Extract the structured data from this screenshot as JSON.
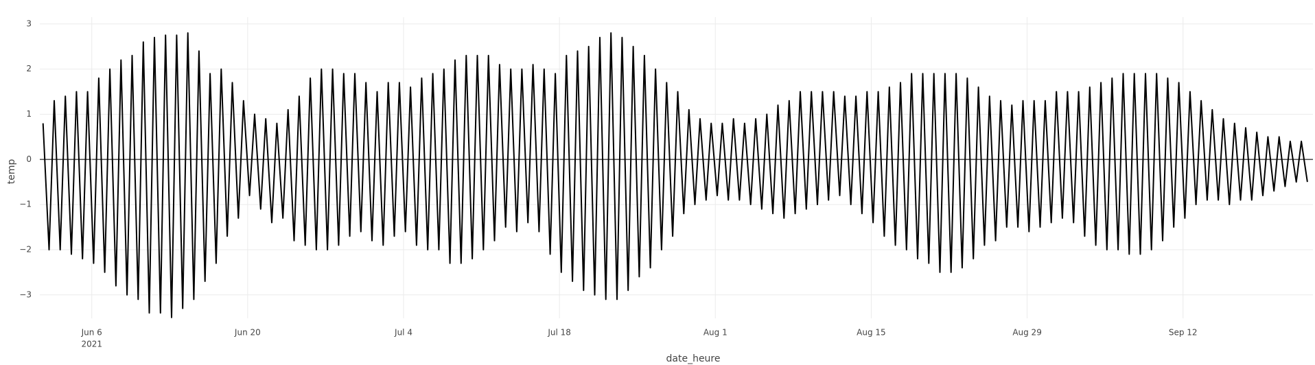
{
  "chart_data": {
    "type": "line",
    "x_label": "date_heure",
    "y_label": "temp",
    "color": "#000000",
    "grid": true,
    "zeroline": true,
    "xlim": [
      "2021-06-01 08:00",
      "2021-09-23 16:00"
    ],
    "ylim": [
      -3.52,
      3.15
    ],
    "yticks": [
      {
        "value": -3,
        "label": "−3"
      },
      {
        "value": -2,
        "label": "−2"
      },
      {
        "value": -1,
        "label": "−1"
      },
      0,
      1,
      2,
      3
    ],
    "xticks": [
      {
        "value": "2021-06-06 00:00",
        "label": "Jun 6",
        "sublabel": "2021"
      },
      {
        "value": "2021-06-20 00:00",
        "label": "Jun 20"
      },
      {
        "value": "2021-07-04 00:00",
        "label": "Jul 4"
      },
      {
        "value": "2021-07-18 00:00",
        "label": "Jul 18"
      },
      {
        "value": "2021-08-01 00:00",
        "label": "Aug 1"
      },
      {
        "value": "2021-08-15 00:00",
        "label": "Aug 15"
      },
      {
        "value": "2021-08-29 00:00",
        "label": "Aug 29"
      },
      {
        "value": "2021-09-12 00:00",
        "label": "Sep 12"
      }
    ],
    "x": [
      "2021-06-01 15:00",
      "2021-06-02 04:00",
      "2021-06-02 15:00",
      "2021-06-03 04:00",
      "2021-06-03 15:00",
      "2021-06-04 04:00",
      "2021-06-04 15:00",
      "2021-06-05 04:00",
      "2021-06-05 15:00",
      "2021-06-06 04:00",
      "2021-06-06 15:00",
      "2021-06-07 04:00",
      "2021-06-07 15:00",
      "2021-06-08 04:00",
      "2021-06-08 15:00",
      "2021-06-09 04:00",
      "2021-06-09 15:00",
      "2021-06-10 04:00",
      "2021-06-10 15:00",
      "2021-06-11 04:00",
      "2021-06-11 15:00",
      "2021-06-12 04:00",
      "2021-06-12 15:00",
      "2021-06-13 04:00",
      "2021-06-13 15:00",
      "2021-06-14 04:00",
      "2021-06-14 15:00",
      "2021-06-15 04:00",
      "2021-06-15 15:00",
      "2021-06-16 04:00",
      "2021-06-16 15:00",
      "2021-06-17 04:00",
      "2021-06-17 15:00",
      "2021-06-18 04:00",
      "2021-06-18 15:00",
      "2021-06-19 04:00",
      "2021-06-19 15:00",
      "2021-06-20 04:00",
      "2021-06-20 15:00",
      "2021-06-21 04:00",
      "2021-06-21 15:00",
      "2021-06-22 04:00",
      "2021-06-22 15:00",
      "2021-06-23 04:00",
      "2021-06-23 15:00",
      "2021-06-24 04:00",
      "2021-06-24 15:00",
      "2021-06-25 04:00",
      "2021-06-25 15:00",
      "2021-06-26 04:00",
      "2021-06-26 15:00",
      "2021-06-27 04:00",
      "2021-06-27 15:00",
      "2021-06-28 04:00",
      "2021-06-28 15:00",
      "2021-06-29 04:00",
      "2021-06-29 15:00",
      "2021-06-30 04:00",
      "2021-06-30 15:00",
      "2021-07-01 04:00",
      "2021-07-01 15:00",
      "2021-07-02 04:00",
      "2021-07-02 15:00",
      "2021-07-03 04:00",
      "2021-07-03 15:00",
      "2021-07-04 04:00",
      "2021-07-04 15:00",
      "2021-07-05 04:00",
      "2021-07-05 15:00",
      "2021-07-06 04:00",
      "2021-07-06 15:00",
      "2021-07-07 04:00",
      "2021-07-07 15:00",
      "2021-07-08 04:00",
      "2021-07-08 15:00",
      "2021-07-09 04:00",
      "2021-07-09 15:00",
      "2021-07-10 04:00",
      "2021-07-10 15:00",
      "2021-07-11 04:00",
      "2021-07-11 15:00",
      "2021-07-12 04:00",
      "2021-07-12 15:00",
      "2021-07-13 04:00",
      "2021-07-13 15:00",
      "2021-07-14 04:00",
      "2021-07-14 15:00",
      "2021-07-15 04:00",
      "2021-07-15 15:00",
      "2021-07-16 04:00",
      "2021-07-16 15:00",
      "2021-07-17 04:00",
      "2021-07-17 15:00",
      "2021-07-18 04:00",
      "2021-07-18 15:00",
      "2021-07-19 04:00",
      "2021-07-19 15:00",
      "2021-07-20 04:00",
      "2021-07-20 15:00",
      "2021-07-21 04:00",
      "2021-07-21 15:00",
      "2021-07-22 04:00",
      "2021-07-22 15:00",
      "2021-07-23 04:00",
      "2021-07-23 15:00",
      "2021-07-24 04:00",
      "2021-07-24 15:00",
      "2021-07-25 04:00",
      "2021-07-25 15:00",
      "2021-07-26 04:00",
      "2021-07-26 15:00",
      "2021-07-27 04:00",
      "2021-07-27 15:00",
      "2021-07-28 04:00",
      "2021-07-28 15:00",
      "2021-07-29 04:00",
      "2021-07-29 15:00",
      "2021-07-30 04:00",
      "2021-07-30 15:00",
      "2021-07-31 04:00",
      "2021-07-31 15:00",
      "2021-08-01 04:00",
      "2021-08-01 15:00",
      "2021-08-02 04:00",
      "2021-08-02 15:00",
      "2021-08-03 04:00",
      "2021-08-03 15:00",
      "2021-08-04 04:00",
      "2021-08-04 15:00",
      "2021-08-05 04:00",
      "2021-08-05 15:00",
      "2021-08-06 04:00",
      "2021-08-06 15:00",
      "2021-08-07 04:00",
      "2021-08-07 15:00",
      "2021-08-08 04:00",
      "2021-08-08 15:00",
      "2021-08-09 04:00",
      "2021-08-09 15:00",
      "2021-08-10 04:00",
      "2021-08-10 15:00",
      "2021-08-11 04:00",
      "2021-08-11 15:00",
      "2021-08-12 04:00",
      "2021-08-12 15:00",
      "2021-08-13 04:00",
      "2021-08-13 15:00",
      "2021-08-14 04:00",
      "2021-08-14 15:00",
      "2021-08-15 04:00",
      "2021-08-15 15:00",
      "2021-08-16 04:00",
      "2021-08-16 15:00",
      "2021-08-17 04:00",
      "2021-08-17 15:00",
      "2021-08-18 04:00",
      "2021-08-18 15:00",
      "2021-08-19 04:00",
      "2021-08-19 15:00",
      "2021-08-20 04:00",
      "2021-08-20 15:00",
      "2021-08-21 04:00",
      "2021-08-21 15:00",
      "2021-08-22 04:00",
      "2021-08-22 15:00",
      "2021-08-23 04:00",
      "2021-08-23 15:00",
      "2021-08-24 04:00",
      "2021-08-24 15:00",
      "2021-08-25 04:00",
      "2021-08-25 15:00",
      "2021-08-26 04:00",
      "2021-08-26 15:00",
      "2021-08-27 04:00",
      "2021-08-27 15:00",
      "2021-08-28 04:00",
      "2021-08-28 15:00",
      "2021-08-29 04:00",
      "2021-08-29 15:00",
      "2021-08-30 04:00",
      "2021-08-30 15:00",
      "2021-08-31 04:00",
      "2021-08-31 15:00",
      "2021-09-01 04:00",
      "2021-09-01 15:00",
      "2021-09-02 04:00",
      "2021-09-02 15:00",
      "2021-09-03 04:00",
      "2021-09-03 15:00",
      "2021-09-04 04:00",
      "2021-09-04 15:00",
      "2021-09-05 04:00",
      "2021-09-05 15:00",
      "2021-09-06 04:00",
      "2021-09-06 15:00",
      "2021-09-07 04:00",
      "2021-09-07 15:00",
      "2021-09-08 04:00",
      "2021-09-08 15:00",
      "2021-09-09 04:00",
      "2021-09-09 15:00",
      "2021-09-10 04:00",
      "2021-09-10 15:00",
      "2021-09-11 04:00",
      "2021-09-11 15:00",
      "2021-09-12 04:00",
      "2021-09-12 15:00",
      "2021-09-13 04:00",
      "2021-09-13 15:00",
      "2021-09-14 04:00",
      "2021-09-14 15:00",
      "2021-09-15 04:00",
      "2021-09-15 15:00",
      "2021-09-16 04:00",
      "2021-09-16 15:00",
      "2021-09-17 04:00",
      "2021-09-17 15:00",
      "2021-09-18 04:00",
      "2021-09-18 15:00",
      "2021-09-19 04:00",
      "2021-09-19 15:00",
      "2021-09-20 04:00",
      "2021-09-20 15:00",
      "2021-09-21 04:00",
      "2021-09-21 15:00",
      "2021-09-22 04:00",
      "2021-09-22 15:00",
      "2021-09-23 04:00"
    ],
    "values": [
      0.8,
      -2.0,
      1.3,
      -2.0,
      1.4,
      -2.1,
      1.5,
      -2.2,
      1.5,
      -2.3,
      1.8,
      -2.5,
      2.0,
      -2.8,
      2.2,
      -3.0,
      2.3,
      -3.1,
      2.6,
      -3.4,
      2.7,
      -3.4,
      2.75,
      -3.5,
      2.75,
      -3.3,
      2.8,
      -3.1,
      2.4,
      -2.7,
      1.9,
      -2.3,
      2.0,
      -1.7,
      1.7,
      -1.3,
      1.3,
      -0.8,
      1.0,
      -1.1,
      0.9,
      -1.4,
      0.8,
      -1.3,
      1.1,
      -1.8,
      1.4,
      -1.9,
      1.8,
      -2.0,
      2.0,
      -2.0,
      2.0,
      -1.9,
      1.9,
      -1.7,
      1.9,
      -1.6,
      1.7,
      -1.8,
      1.5,
      -1.9,
      1.7,
      -1.7,
      1.7,
      -1.6,
      1.6,
      -1.9,
      1.8,
      -2.0,
      1.9,
      -2.0,
      2.0,
      -2.3,
      2.2,
      -2.3,
      2.3,
      -2.2,
      2.3,
      -2.0,
      2.3,
      -1.8,
      2.1,
      -1.5,
      2.0,
      -1.6,
      2.0,
      -1.4,
      2.1,
      -1.6,
      2.0,
      -2.1,
      1.9,
      -2.5,
      2.3,
      -2.7,
      2.4,
      -2.9,
      2.5,
      -3.0,
      2.7,
      -3.1,
      2.8,
      -3.1,
      2.7,
      -2.9,
      2.5,
      -2.6,
      2.3,
      -2.4,
      2.0,
      -2.0,
      1.7,
      -1.7,
      1.5,
      -1.2,
      1.1,
      -1.0,
      0.9,
      -0.9,
      0.8,
      -0.8,
      0.8,
      -0.9,
      0.9,
      -0.9,
      0.8,
      -1.0,
      0.9,
      -1.1,
      1.0,
      -1.2,
      1.2,
      -1.3,
      1.3,
      -1.2,
      1.5,
      -1.1,
      1.5,
      -1.0,
      1.5,
      -0.9,
      1.5,
      -0.8,
      1.4,
      -1.0,
      1.4,
      -1.2,
      1.5,
      -1.4,
      1.5,
      -1.7,
      1.6,
      -1.9,
      1.7,
      -2.0,
      1.9,
      -2.2,
      1.9,
      -2.3,
      1.9,
      -2.5,
      1.9,
      -2.5,
      1.9,
      -2.4,
      1.8,
      -2.2,
      1.6,
      -1.9,
      1.4,
      -1.8,
      1.3,
      -1.5,
      1.2,
      -1.5,
      1.3,
      -1.6,
      1.3,
      -1.5,
      1.3,
      -1.4,
      1.5,
      -1.3,
      1.5,
      -1.4,
      1.5,
      -1.7,
      1.6,
      -1.9,
      1.7,
      -2.0,
      1.8,
      -2.0,
      1.9,
      -2.1,
      1.9,
      -2.1,
      1.9,
      -2.0,
      1.9,
      -1.8,
      1.8,
      -1.5,
      1.7,
      -1.3,
      1.5,
      -1.0,
      1.3,
      -0.9,
      1.1,
      -0.9,
      0.9,
      -1.0,
      0.8,
      -0.9,
      0.7,
      -0.9,
      0.6,
      -0.8,
      0.5,
      -0.7,
      0.5,
      -0.6,
      0.4,
      -0.5,
      0.4,
      -0.5
    ]
  }
}
